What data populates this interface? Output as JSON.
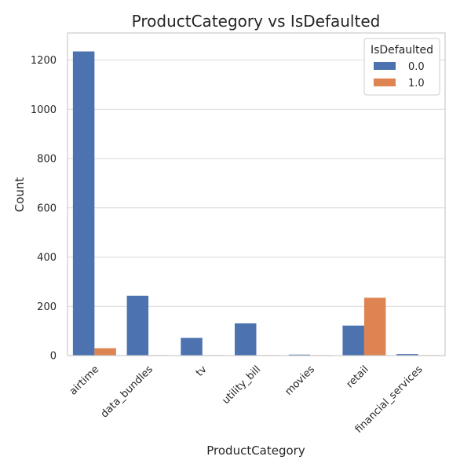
{
  "chart_data": {
    "type": "bar",
    "title": "ProductCategory vs IsDefaulted",
    "xlabel": "ProductCategory",
    "ylabel": "Count",
    "categories": [
      "airtime",
      "data_bundles",
      "tv",
      "utility_bill",
      "movies",
      "retail",
      "financial_services"
    ],
    "series": [
      {
        "name": "0.0",
        "color": "#4c72b0",
        "values": [
          1235,
          243,
          72,
          131,
          4,
          122,
          6
        ]
      },
      {
        "name": "1.0",
        "color": "#dd8452",
        "values": [
          30,
          2,
          2,
          2,
          2,
          235,
          2
        ]
      }
    ],
    "ylim": [
      0,
      1310
    ],
    "yticks": [
      0,
      200,
      400,
      600,
      800,
      1000,
      1200
    ],
    "grid": true,
    "legend": {
      "title": "IsDefaulted",
      "placement": "top-right"
    }
  }
}
